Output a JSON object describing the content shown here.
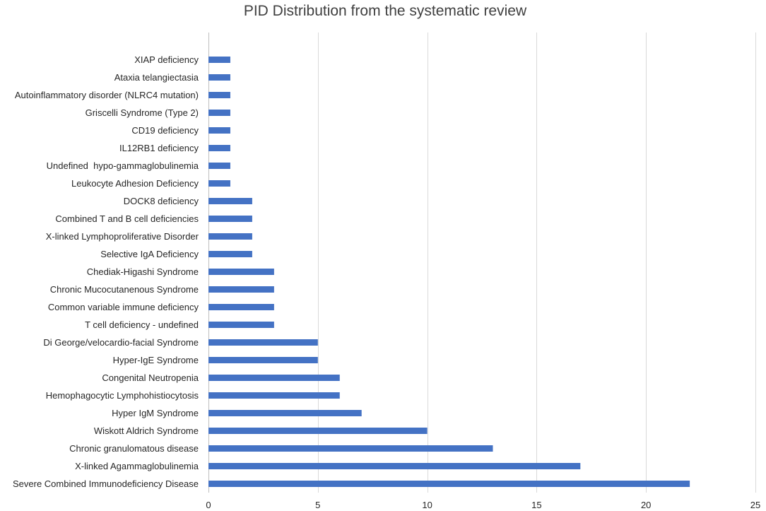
{
  "chart_data": {
    "type": "bar",
    "orientation": "horizontal",
    "title": "PID Distribution from the systematic review",
    "xlabel": "",
    "ylabel": "",
    "xlim": [
      0,
      25
    ],
    "x_ticks": [
      0,
      5,
      10,
      15,
      20,
      25
    ],
    "grid": true,
    "bar_color": "#4472C4",
    "categories": [
      "Severe Combined Immunodeficiency Disease",
      "X-linked Agammaglobulinemia",
      "Chronic granulomatous disease",
      "Wiskott Aldrich Syndrome",
      "Hyper IgM Syndrome",
      "Hemophagocytic Lymphohistiocytosis",
      "Congenital Neutropenia",
      "Hyper-IgE Syndrome",
      "Di George/velocardio-facial Syndrome",
      "T cell deficiency - undefined",
      "Common variable immune deficiency",
      "Chronic Mucocutanenous Syndrome",
      "Chediak-Higashi Syndrome",
      "Selective IgA Deficiency",
      "X-linked Lymphoproliferative Disorder",
      "Combined T and B cell deficiencies",
      "DOCK8 deficiency",
      "Leukocyte Adhesion Deficiency",
      "Undefined  hypo-gammaglobulinemia",
      "IL12RB1 deficiency",
      "CD19 deficiency",
      "Griscelli Syndrome (Type 2)",
      "Autoinflammatory disorder (NLRC4 mutation)",
      "Ataxia telangiectasia",
      "XIAP deficiency"
    ],
    "values": [
      22,
      17,
      13,
      10,
      7,
      6,
      6,
      5,
      5,
      3,
      3,
      3,
      3,
      2,
      2,
      2,
      2,
      1,
      1,
      1,
      1,
      1,
      1,
      1,
      1
    ]
  }
}
